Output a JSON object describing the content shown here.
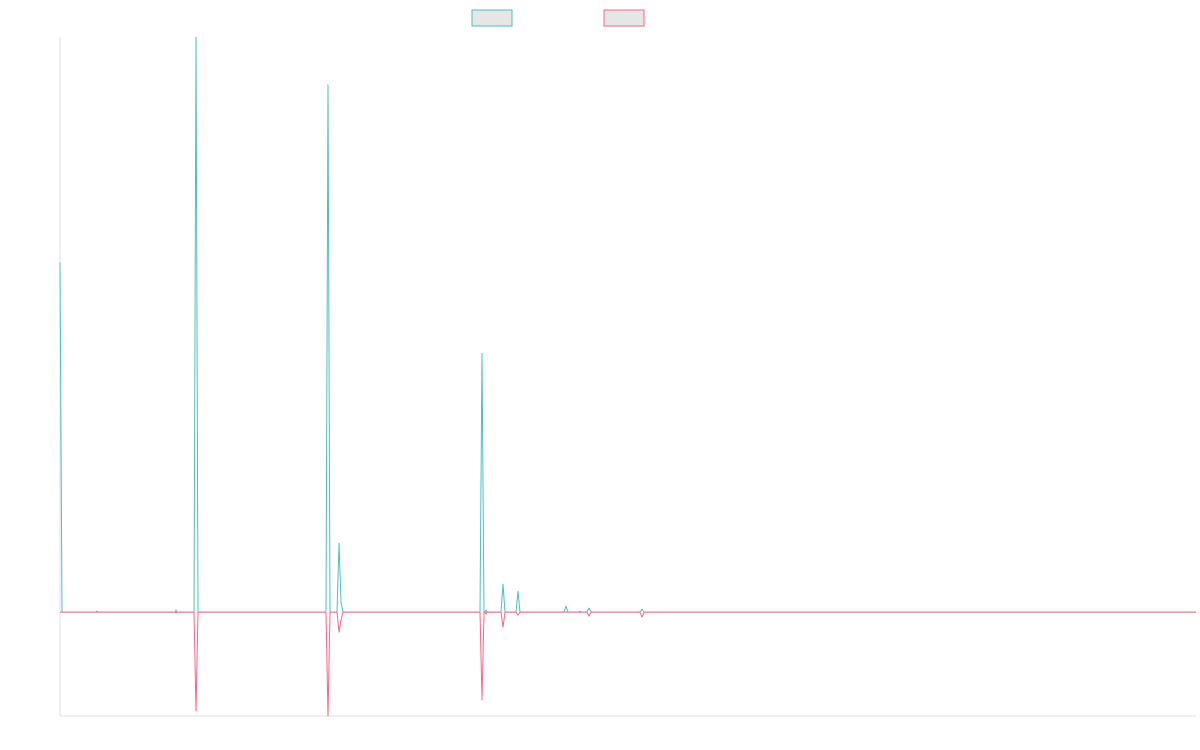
{
  "chart_data": {
    "type": "line",
    "title": "",
    "xlabel": "",
    "ylabel": "",
    "grid": false,
    "legend_placement": "top-center",
    "xlim": [
      0,
      1136
    ],
    "ylim": [
      -104,
      576
    ],
    "colors": {
      "positive": "#4bc0c0",
      "negative": "#ff6384",
      "legend_fill": "#e6e6e6",
      "axis": "#e0e0e0"
    },
    "series": [
      {
        "color": "#4bc0c0",
        "points": [
          [
            0,
            350
          ],
          [
            2,
            0
          ],
          [
            36,
            0
          ],
          [
            37,
            1
          ],
          [
            38,
            0
          ],
          [
            104,
            0
          ],
          [
            115,
            0
          ],
          [
            116,
            2
          ],
          [
            117,
            0
          ],
          [
            118,
            0
          ],
          [
            134,
            0
          ],
          [
            136,
            576
          ],
          [
            138,
            0
          ],
          [
            266,
            0
          ],
          [
            268,
            528
          ],
          [
            270,
            0
          ],
          [
            277,
            0
          ],
          [
            279,
            69
          ],
          [
            281,
            10
          ],
          [
            283,
            0
          ],
          [
            420,
            0
          ],
          [
            422,
            259
          ],
          [
            424,
            0
          ],
          [
            425,
            0
          ],
          [
            426,
            2
          ],
          [
            427,
            0
          ],
          [
            441,
            0
          ],
          [
            443,
            28
          ],
          [
            445,
            0
          ],
          [
            456,
            0
          ],
          [
            458,
            21
          ],
          [
            460,
            0
          ],
          [
            504,
            0
          ],
          [
            506,
            6
          ],
          [
            508,
            0
          ],
          [
            519,
            0
          ],
          [
            520,
            1
          ],
          [
            521,
            0
          ],
          [
            527,
            0
          ],
          [
            529,
            4
          ],
          [
            531,
            0
          ],
          [
            580,
            0
          ],
          [
            582,
            3
          ],
          [
            584,
            0
          ],
          [
            1136,
            0
          ]
        ]
      },
      {
        "color": "#ff6384",
        "points": [
          [
            0,
            0
          ],
          [
            115,
            0
          ],
          [
            116,
            -1
          ],
          [
            117,
            0
          ],
          [
            134,
            0
          ],
          [
            136,
            -99
          ],
          [
            138,
            0
          ],
          [
            266,
            0
          ],
          [
            268,
            -104
          ],
          [
            270,
            0
          ],
          [
            277,
            0
          ],
          [
            279,
            -20
          ],
          [
            281,
            -8
          ],
          [
            283,
            0
          ],
          [
            420,
            0
          ],
          [
            422,
            -88
          ],
          [
            424,
            0
          ],
          [
            425,
            0
          ],
          [
            426,
            -2
          ],
          [
            427,
            0
          ],
          [
            441,
            0
          ],
          [
            443,
            -15
          ],
          [
            445,
            0
          ],
          [
            456,
            0
          ],
          [
            458,
            -3
          ],
          [
            460,
            0
          ],
          [
            527,
            0
          ],
          [
            529,
            -4
          ],
          [
            531,
            0
          ],
          [
            580,
            0
          ],
          [
            582,
            -5
          ],
          [
            584,
            0
          ],
          [
            1136,
            0
          ]
        ]
      }
    ]
  }
}
